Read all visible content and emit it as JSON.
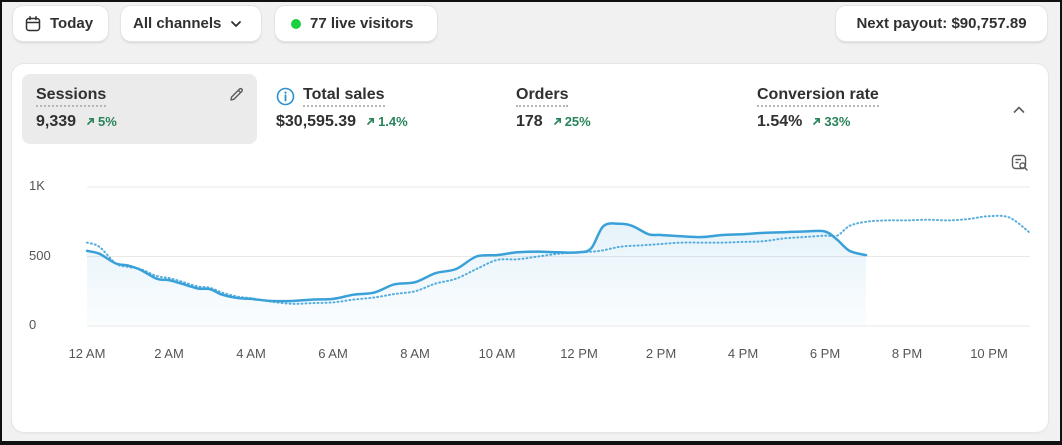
{
  "toolbar": {
    "date_label": "Today",
    "channel_label": "All channels",
    "live_label": "77 live visitors",
    "payout_label": "Next payout: $90,757.89"
  },
  "metrics": [
    {
      "label": "Sessions",
      "value": "9,339",
      "change": "5%"
    },
    {
      "label": "Total sales",
      "value": "$30,595.39",
      "change": "1.4%"
    },
    {
      "label": "Orders",
      "value": "178",
      "change": "25%"
    },
    {
      "label": "Conversion rate",
      "value": "1.54%",
      "change": "33%"
    }
  ],
  "colors": {
    "accent": "#3aa0d8",
    "positive": "#29845a",
    "live": "#18d13e"
  },
  "icons": {
    "date": "calendar-icon",
    "channel": "chevron-down-icon",
    "edit": "pencil-icon",
    "info": "info-icon",
    "collapse": "chevron-up-icon",
    "insight": "chart-search-icon"
  },
  "chart_data": {
    "type": "line",
    "y_ticks": [
      "1K",
      "500",
      "0"
    ],
    "ylim": [
      0,
      1000
    ],
    "x_ticks": [
      "12 AM",
      "2 AM",
      "4 AM",
      "6 AM",
      "8 AM",
      "10 AM",
      "12 PM",
      "2 PM",
      "4 PM",
      "6 PM",
      "8 PM",
      "10 PM"
    ],
    "xlim": [
      0,
      23
    ],
    "grid": true,
    "series": [
      {
        "style": "solid",
        "x": [
          0,
          0.3,
          0.7,
          1,
          1.3,
          1.7,
          2,
          2.3,
          2.7,
          3,
          3.3,
          3.7,
          4,
          4.5,
          5,
          5.5,
          6,
          6.5,
          7,
          7.5,
          8,
          8.5,
          9,
          9.5,
          10,
          10.5,
          11,
          11.5,
          12,
          12.3,
          12.6,
          13,
          13.3,
          13.7,
          14,
          14.5,
          15,
          15.5,
          16,
          16.5,
          17,
          17.5,
          18,
          18.3,
          18.6,
          19
        ],
        "values": [
          540,
          520,
          450,
          435,
          405,
          340,
          330,
          305,
          270,
          265,
          225,
          200,
          195,
          180,
          180,
          190,
          195,
          225,
          240,
          300,
          315,
          380,
          410,
          500,
          510,
          530,
          535,
          530,
          530,
          560,
          720,
          735,
          720,
          660,
          655,
          645,
          640,
          655,
          660,
          670,
          675,
          680,
          680,
          620,
          540,
          510
        ]
      },
      {
        "style": "dotted",
        "x": [
          0,
          0.3,
          0.7,
          1,
          1.3,
          1.7,
          2,
          2.3,
          2.7,
          3,
          3.3,
          3.7,
          4,
          4.5,
          5,
          5.5,
          6,
          6.5,
          7,
          7.5,
          8,
          8.5,
          9,
          9.5,
          10,
          10.5,
          11,
          11.5,
          12,
          12.5,
          13,
          13.5,
          14,
          14.5,
          15,
          15.5,
          16,
          16.5,
          17,
          17.5,
          18,
          18.3,
          18.6,
          19,
          19.5,
          20,
          20.5,
          21,
          21.5,
          22,
          22.5,
          23
        ],
        "values": [
          600,
          570,
          450,
          425,
          410,
          360,
          345,
          320,
          285,
          275,
          240,
          210,
          200,
          175,
          160,
          165,
          170,
          190,
          205,
          230,
          250,
          305,
          340,
          410,
          475,
          480,
          500,
          520,
          530,
          540,
          570,
          580,
          590,
          600,
          600,
          600,
          605,
          610,
          630,
          640,
          650,
          650,
          720,
          750,
          760,
          760,
          765,
          760,
          770,
          790,
          780,
          670
        ]
      }
    ]
  }
}
